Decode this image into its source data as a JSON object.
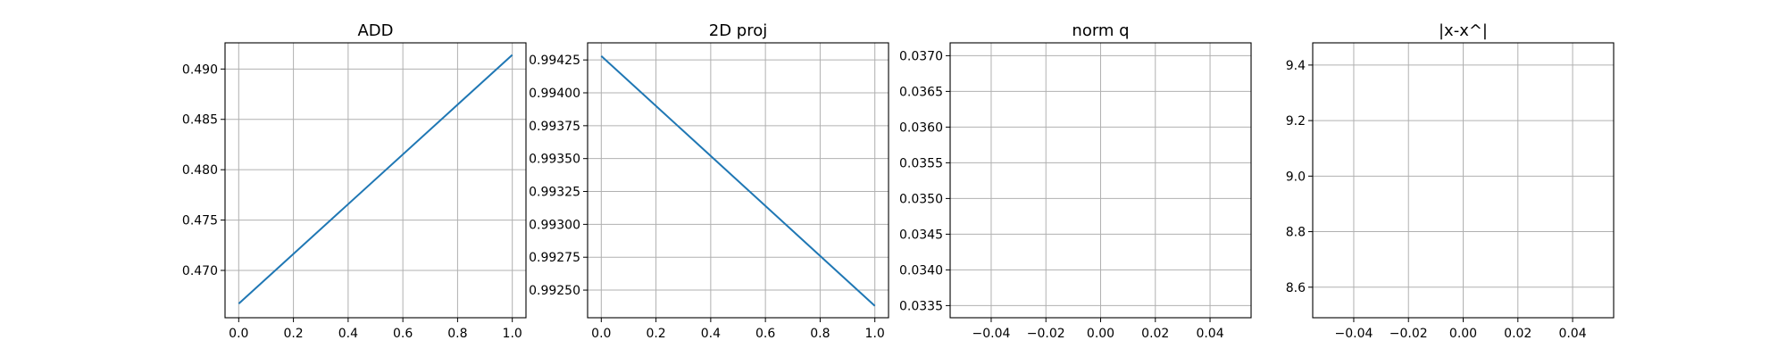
{
  "chart_data": [
    {
      "type": "line",
      "title": "ADD",
      "xlabel": "",
      "ylabel": "",
      "grid": true,
      "xlim": [
        -0.05,
        1.05
      ],
      "ylim": [
        0.4653,
        0.4926
      ],
      "x_ticks": [
        0.0,
        0.2,
        0.4,
        0.6,
        0.8,
        1.0
      ],
      "x_tick_labels": [
        "0.0",
        "0.2",
        "0.4",
        "0.6",
        "0.8",
        "1.0"
      ],
      "y_ticks": [
        0.47,
        0.475,
        0.48,
        0.485,
        0.49
      ],
      "y_tick_labels": [
        "0.470",
        "0.475",
        "0.480",
        "0.485",
        "0.490"
      ],
      "series": [
        {
          "x": [
            0,
            1
          ],
          "y": [
            0.4667,
            0.4914
          ],
          "color": "#1f77b4"
        }
      ]
    },
    {
      "type": "line",
      "title": "2D proj",
      "xlabel": "",
      "ylabel": "",
      "grid": true,
      "xlim": [
        -0.05,
        1.05
      ],
      "ylim": [
        0.99229,
        0.99438
      ],
      "x_ticks": [
        0.0,
        0.2,
        0.4,
        0.6,
        0.8,
        1.0
      ],
      "x_tick_labels": [
        "0.0",
        "0.2",
        "0.4",
        "0.6",
        "0.8",
        "1.0"
      ],
      "y_ticks": [
        0.9925,
        0.99275,
        0.993,
        0.99325,
        0.9935,
        0.99375,
        0.994,
        0.99425
      ],
      "y_tick_labels": [
        "0.99250",
        "0.99275",
        "0.99300",
        "0.99325",
        "0.99350",
        "0.99375",
        "0.99400",
        "0.99425"
      ],
      "series": [
        {
          "x": [
            0,
            1
          ],
          "y": [
            0.99428,
            0.99238
          ],
          "color": "#1f77b4"
        }
      ]
    },
    {
      "type": "line",
      "title": "norm q",
      "xlabel": "",
      "ylabel": "",
      "grid": true,
      "xlim": [
        -0.055,
        0.055
      ],
      "ylim": [
        0.03333,
        0.03718
      ],
      "x_ticks": [
        -0.04,
        -0.02,
        0.0,
        0.02,
        0.04
      ],
      "x_tick_labels": [
        "−0.04",
        "−0.02",
        "0.00",
        "0.02",
        "0.04"
      ],
      "y_ticks": [
        0.0335,
        0.034,
        0.0345,
        0.035,
        0.0355,
        0.036,
        0.0365,
        0.037
      ],
      "y_tick_labels": [
        "0.0335",
        "0.0340",
        "0.0345",
        "0.0350",
        "0.0355",
        "0.0360",
        "0.0365",
        "0.0370"
      ],
      "series": []
    },
    {
      "type": "line",
      "title": "|x-x^|",
      "xlabel": "",
      "ylabel": "",
      "grid": true,
      "xlim": [
        -0.055,
        0.055
      ],
      "ylim": [
        8.49,
        9.48
      ],
      "x_ticks": [
        -0.04,
        -0.02,
        0.0,
        0.02,
        0.04
      ],
      "x_tick_labels": [
        "−0.04",
        "−0.02",
        "0.00",
        "0.02",
        "0.04"
      ],
      "y_ticks": [
        8.6,
        8.8,
        9.0,
        9.2,
        9.4
      ],
      "y_tick_labels": [
        "8.6",
        "8.8",
        "9.0",
        "9.2",
        "9.4"
      ],
      "series": []
    }
  ]
}
